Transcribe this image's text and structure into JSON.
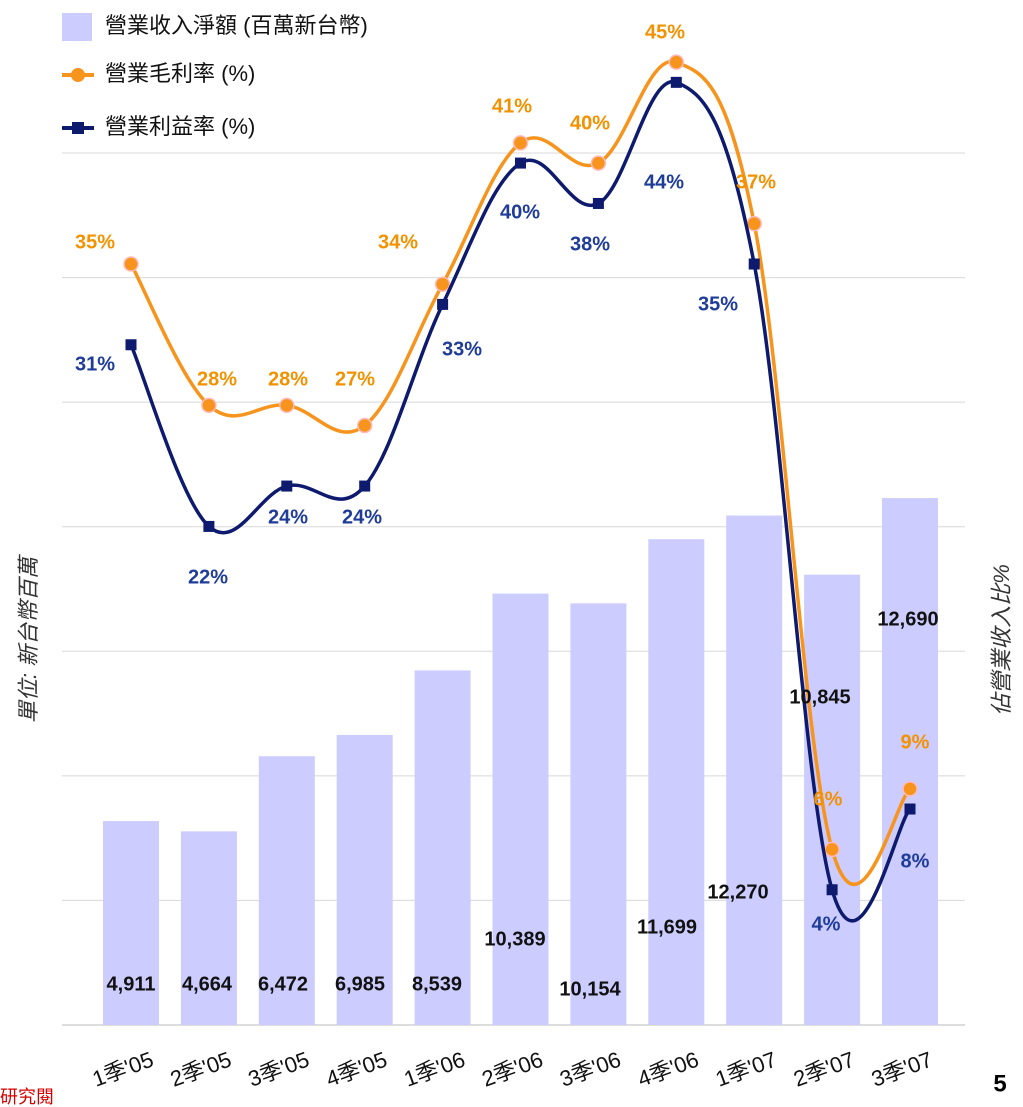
{
  "chart_data": {
    "type": "bar-line",
    "categories": [
      "1季'05",
      "2季'05",
      "3季'05",
      "4季'05",
      "1季'06",
      "2季'06",
      "3季'06",
      "4季'06",
      "1季'07",
      "2季'07",
      "3季'07"
    ],
    "ylabel": "單位: 新台幣百萬",
    "y2label": "佔營業收入比%",
    "ylim": [
      0,
      21000
    ],
    "yticks": [
      0,
      3000,
      6000,
      9000,
      12000,
      15000,
      18000,
      21000
    ],
    "y2lim": [
      -2.7,
      40.5
    ],
    "grid": true,
    "legend": "top-left",
    "series": [
      {
        "name": "營業收入淨額 (百萬新台幣)",
        "type": "bar",
        "color": "#ccccff",
        "values": [
          4911,
          4664,
          6472,
          6985,
          8539,
          10389,
          10154,
          11699,
          12270,
          10845,
          12690
        ],
        "value_labels": [
          "4,911",
          "4,664",
          "6,472",
          "6,985",
          "8,539",
          "10,389",
          "10,154",
          "11,699",
          "12,270",
          "10,845",
          "12,690"
        ]
      },
      {
        "name": "營業毛利率 (%)",
        "type": "line",
        "axis": "y2",
        "color": "#f7941d",
        "label_color": "#f39200",
        "marker": "circle",
        "values": [
          35,
          28,
          28,
          27,
          34,
          41,
          40,
          45,
          37,
          6,
          9
        ],
        "value_labels": [
          "35%",
          "28%",
          "28%",
          "27%",
          "34%",
          "41%",
          "40%",
          "45%",
          "37%",
          "6%",
          "9%"
        ]
      },
      {
        "name": "營業利益率 (%)",
        "type": "line",
        "axis": "y2",
        "color": "#0d1a6e",
        "label_color": "#1f3c99",
        "marker": "square",
        "values": [
          31,
          22,
          24,
          24,
          33,
          40,
          38,
          44,
          35,
          4,
          8
        ],
        "value_labels": [
          "31%",
          "22%",
          "24%",
          "24%",
          "33%",
          "40%",
          "38%",
          "44%",
          "35%",
          "4%",
          "8%"
        ]
      }
    ],
    "page_number": "5",
    "footer_note": "研究閱"
  }
}
